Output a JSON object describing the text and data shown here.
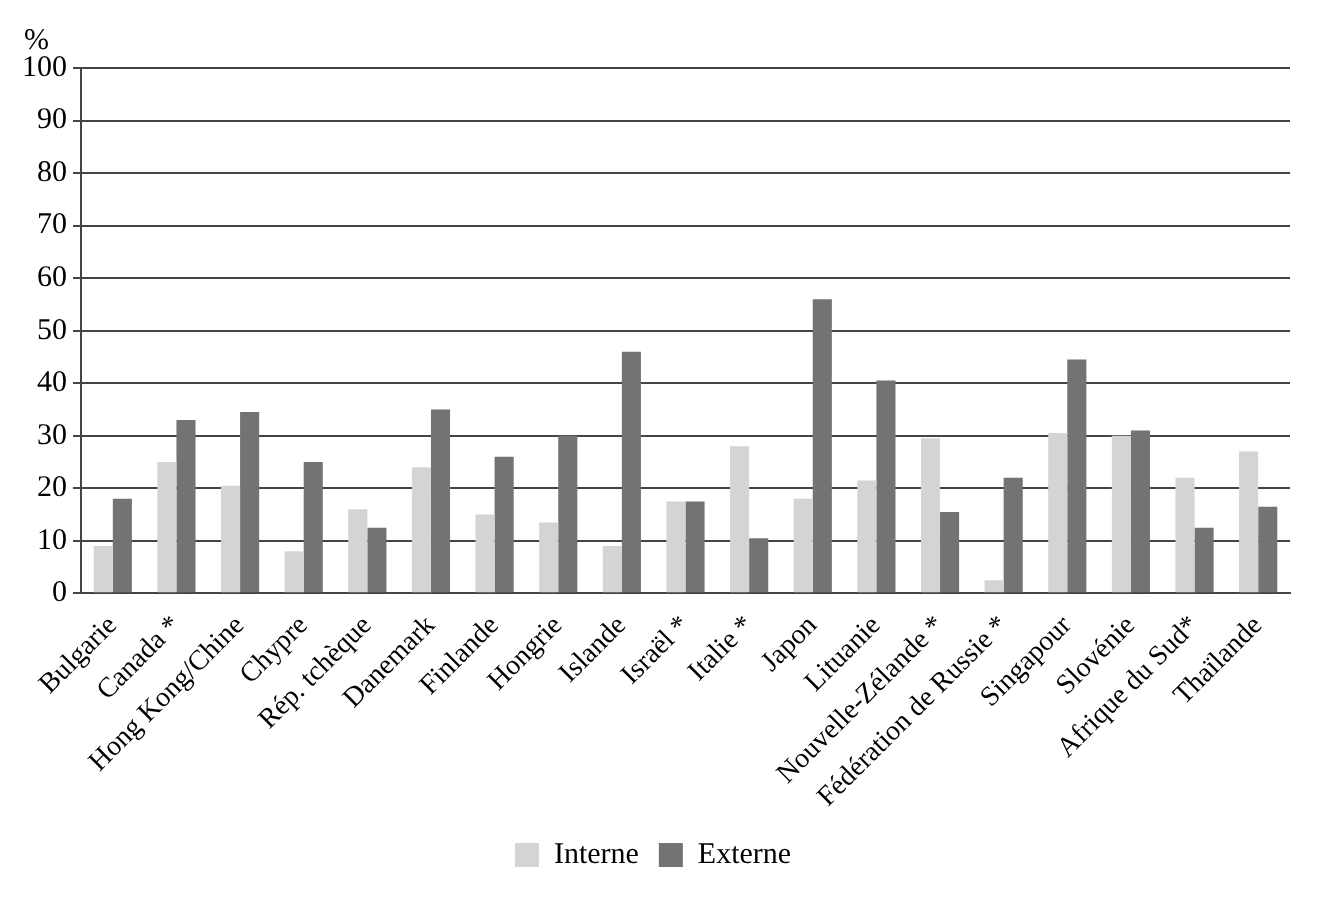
{
  "chart_data": {
    "type": "bar",
    "ylabel": "%",
    "categories": [
      "Bulgarie",
      "Canada *",
      "Hong Kong/Chine",
      "Chypre",
      "Rép. tchèque",
      "Danemark",
      "Finlande",
      "Hongrie",
      "Islande",
      "Israël *",
      "Italie *",
      "Japon",
      "Lituanie",
      "Nouvelle-Zélande *",
      "Fédération de Russie *",
      "Singapour",
      "Slovénie",
      "Afrique du Sud*",
      "Thaïlande"
    ],
    "series": [
      {
        "name": "Interne",
        "color": "#d4d4d4",
        "values": [
          9,
          25,
          20.5,
          8,
          16,
          24,
          15,
          13.5,
          9,
          17.5,
          28,
          18,
          21.5,
          29.5,
          2.5,
          30.5,
          30,
          22,
          27
        ]
      },
      {
        "name": "Externe",
        "color": "#737373",
        "values": [
          18,
          33,
          34.5,
          25,
          12.5,
          35,
          26,
          30,
          46,
          17.5,
          10.5,
          56,
          40.5,
          15.5,
          22,
          44.5,
          31,
          12.5,
          16.5
        ]
      }
    ],
    "ylim": [
      0,
      100
    ],
    "yticks": [
      0,
      10,
      20,
      30,
      40,
      50,
      60,
      70,
      80,
      90,
      100
    ],
    "grid": "y",
    "legend": "bottom"
  }
}
